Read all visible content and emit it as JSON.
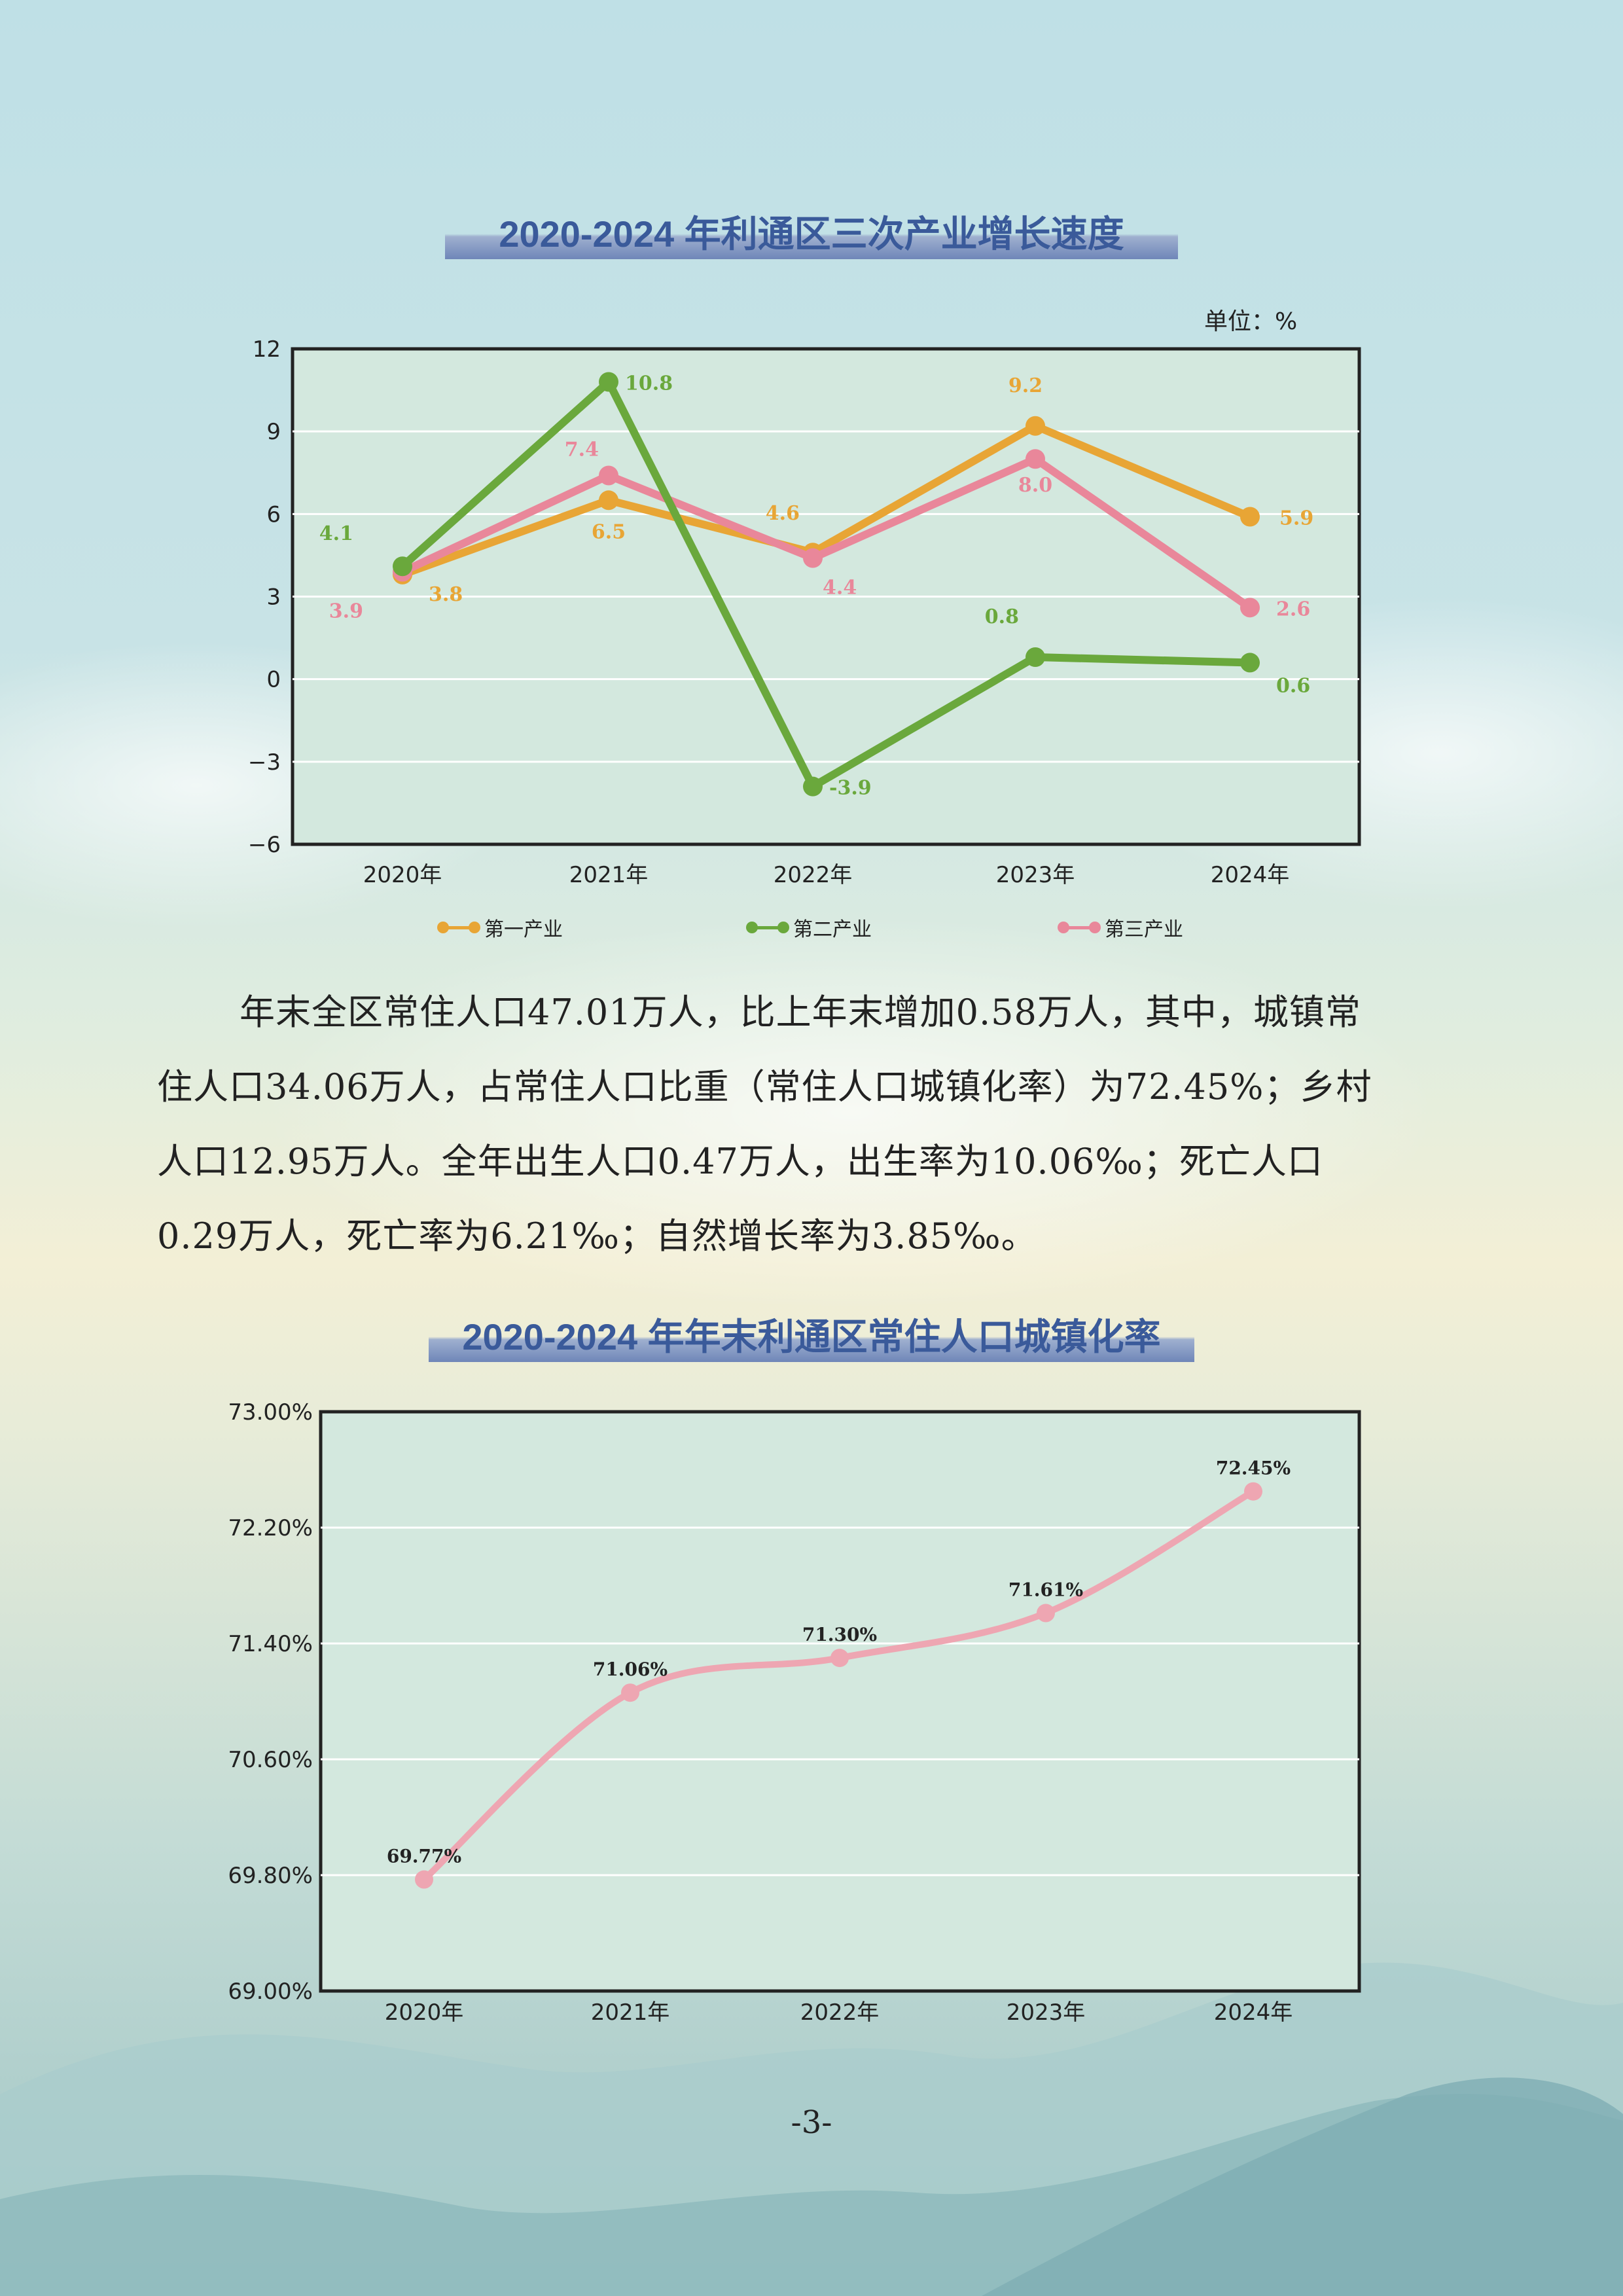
{
  "chart1_title": "2020-2024 年利通区三次产业增长速度",
  "chart1_unit": "单位：%",
  "chart2_title": "2020-2024 年年末利通区常住人口城镇化率",
  "paragraph": [
    "年末全区常住人口47.01万人，比上年末增加0.58万人，其中，城镇常",
    "住人口34.06万人，占常住人口比重（常住人口城镇化率）为72.45%；乡村",
    "人口12.95万人。全年出生人口0.47万人，出生率为10.06‰；死亡人口",
    "0.29万人，死亡率为6.21‰；自然增长率为3.85‰。"
  ],
  "page_number": "-3-",
  "colors": {
    "primary": "#e8a535",
    "secondary": "#6aa83c",
    "tertiary": "#e9879a",
    "urban": "#eea6b2",
    "plot_bg": "#d3e8de"
  },
  "chart_data": [
    {
      "type": "line",
      "title": "2020-2024 年利通区三次产业增长速度",
      "unit": "单位：%",
      "categories": [
        "2020年",
        "2021年",
        "2022年",
        "2023年",
        "2024年"
      ],
      "yticks": [
        "12",
        "9",
        "6",
        "3",
        "0",
        "−3",
        "−6"
      ],
      "ylim": [
        -6,
        12
      ],
      "grid": true,
      "legend_position": "bottom",
      "series": [
        {
          "name": "第一产业",
          "values": [
            3.8,
            6.5,
            4.6,
            9.2,
            5.9
          ],
          "labels": [
            "3.8",
            "6.5",
            "4.6",
            "9.2",
            "5.9"
          ]
        },
        {
          "name": "第二产业",
          "values": [
            4.1,
            10.8,
            -3.9,
            0.8,
            0.6
          ],
          "labels": [
            "4.1",
            "10.8",
            "-3.9",
            "0.8",
            "0.6"
          ]
        },
        {
          "name": "第三产业",
          "values": [
            3.9,
            7.4,
            4.4,
            8.0,
            2.6
          ],
          "labels": [
            "3.9",
            "7.4",
            "4.4",
            "8.0",
            "2.6"
          ]
        }
      ]
    },
    {
      "type": "line",
      "title": "2020-2024 年年末利通区常住人口城镇化率",
      "categories": [
        "2020年",
        "2021年",
        "2022年",
        "2023年",
        "2024年"
      ],
      "yticks": [
        "73.00%",
        "72.20%",
        "71.40%",
        "70.60%",
        "69.80%",
        "69.00%"
      ],
      "ylim": [
        69.0,
        73.0
      ],
      "grid": true,
      "smooth": true,
      "series": [
        {
          "values": [
            69.77,
            71.06,
            71.3,
            71.61,
            72.45
          ],
          "labels": [
            "69.77%",
            "71.06%",
            "71.30%",
            "71.61%",
            "72.45%"
          ]
        }
      ]
    }
  ]
}
